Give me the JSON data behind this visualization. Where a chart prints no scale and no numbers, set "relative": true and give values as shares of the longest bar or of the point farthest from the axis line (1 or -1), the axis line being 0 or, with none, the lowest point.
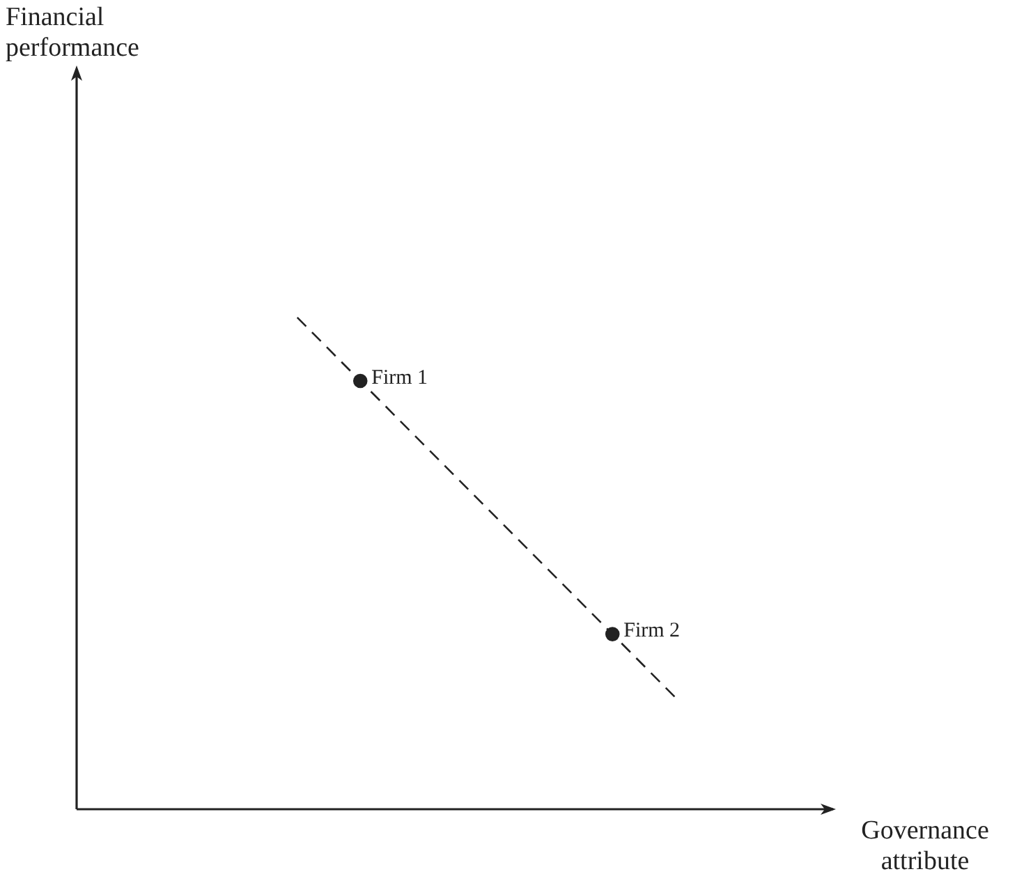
{
  "chart_data": {
    "type": "line",
    "relative": true,
    "xlabel": "Governance attribute",
    "marker": "circle",
    "line_style": "dashed",
    "annotations": [
      "Financial performance",
      "Firm 1",
      "Firm 2"
    ],
    "categories": [
      null,
      null,
      null,
      null,
      null,
      null,
      null,
      null,
      null,
      null,
      null,
      null,
      null,
      null,
      null,
      null,
      null,
      null,
      null,
      null,
      null,
      null,
      null,
      null,
      null
    ],
    "series": [
      {
        "color": "#222222",
        "values": [
          null,
          null,
          null,
          null,
          null,
          null,
          null,
          1,
          null,
          0.871,
          null,
          null,
          null,
          null,
          null,
          null,
          null,
          0.356,
          null,
          0.227,
          null,
          null,
          null,
          null,
          null
        ]
      }
    ]
  }
}
